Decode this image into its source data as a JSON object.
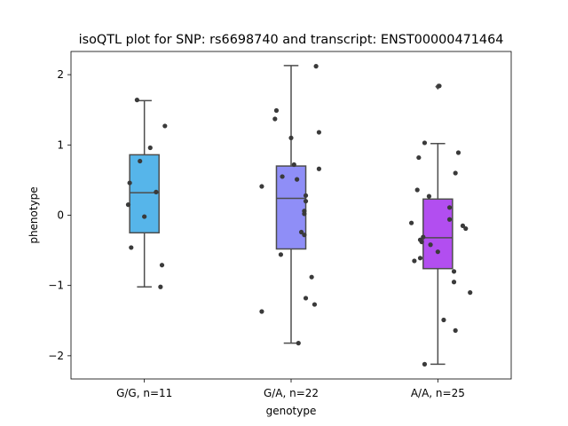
{
  "chart_data": {
    "type": "box",
    "title": "isoQTL plot for SNP: rs6698740 and transcript: ENST00000471464",
    "xlabel": "genotype",
    "ylabel": "phenotype",
    "ylim": [
      -2.33,
      2.33
    ],
    "yticks": [
      -2,
      -1,
      0,
      1,
      2
    ],
    "ytick_labels": [
      "−2",
      "−1",
      "0",
      "1",
      "2"
    ],
    "grid": false,
    "legend": "none",
    "categories": [
      "G/G, n=11",
      "G/A, n=22",
      "A/A, n=25"
    ],
    "colors": [
      "#56b5ea",
      "#8f8ef7",
      "#b24ef0"
    ],
    "point_color": "#3a3a3a",
    "boxes": [
      {
        "q1": -0.25,
        "median": 0.32,
        "q3": 0.86,
        "whisker_low": -1.02,
        "whisker_high": 1.63,
        "fliers": []
      },
      {
        "q1": -0.48,
        "median": 0.24,
        "q3": 0.7,
        "whisker_low": -1.82,
        "whisker_high": 2.13,
        "fliers": []
      },
      {
        "q1": -0.76,
        "median": -0.32,
        "q3": 0.23,
        "whisker_low": -2.12,
        "whisker_high": 1.02,
        "fliers": [
          1.83
        ]
      }
    ],
    "points": [
      [
        {
          "dx": -0.05,
          "y": 1.64
        },
        {
          "dx": 0.14,
          "y": 1.27
        },
        {
          "dx": 0.04,
          "y": 0.96
        },
        {
          "dx": -0.03,
          "y": 0.77
        },
        {
          "dx": -0.1,
          "y": 0.46
        },
        {
          "dx": 0.08,
          "y": 0.33
        },
        {
          "dx": -0.11,
          "y": 0.15
        },
        {
          "dx": 0.0,
          "y": -0.02
        },
        {
          "dx": -0.09,
          "y": -0.46
        },
        {
          "dx": 0.12,
          "y": -0.71
        },
        {
          "dx": 0.11,
          "y": -1.02
        }
      ],
      [
        {
          "dx": 0.17,
          "y": 2.12
        },
        {
          "dx": -0.1,
          "y": 1.49
        },
        {
          "dx": -0.11,
          "y": 1.37
        },
        {
          "dx": 0.19,
          "y": 1.18
        },
        {
          "dx": 0.0,
          "y": 1.1
        },
        {
          "dx": 0.02,
          "y": 0.72
        },
        {
          "dx": 0.19,
          "y": 0.66
        },
        {
          "dx": -0.06,
          "y": 0.55
        },
        {
          "dx": 0.04,
          "y": 0.51
        },
        {
          "dx": -0.2,
          "y": 0.41
        },
        {
          "dx": 0.1,
          "y": 0.28
        },
        {
          "dx": 0.1,
          "y": 0.2
        },
        {
          "dx": 0.09,
          "y": 0.06
        },
        {
          "dx": 0.09,
          "y": 0.02
        },
        {
          "dx": 0.07,
          "y": -0.24
        },
        {
          "dx": 0.09,
          "y": -0.28
        },
        {
          "dx": -0.07,
          "y": -0.56
        },
        {
          "dx": 0.14,
          "y": -0.88
        },
        {
          "dx": 0.1,
          "y": -1.18
        },
        {
          "dx": 0.16,
          "y": -1.27
        },
        {
          "dx": -0.2,
          "y": -1.37
        },
        {
          "dx": 0.05,
          "y": -1.82
        }
      ],
      [
        {
          "dx": 0.01,
          "y": 1.84
        },
        {
          "dx": -0.09,
          "y": 1.03
        },
        {
          "dx": 0.14,
          "y": 0.89
        },
        {
          "dx": -0.13,
          "y": 0.82
        },
        {
          "dx": 0.12,
          "y": 0.6
        },
        {
          "dx": -0.14,
          "y": 0.36
        },
        {
          "dx": -0.06,
          "y": 0.27
        },
        {
          "dx": 0.08,
          "y": 0.11
        },
        {
          "dx": 0.08,
          "y": -0.06
        },
        {
          "dx": -0.18,
          "y": -0.11
        },
        {
          "dx": 0.17,
          "y": -0.15
        },
        {
          "dx": 0.19,
          "y": -0.19
        },
        {
          "dx": -0.1,
          "y": -0.31
        },
        {
          "dx": -0.12,
          "y": -0.35
        },
        {
          "dx": -0.11,
          "y": -0.38
        },
        {
          "dx": -0.05,
          "y": -0.42
        },
        {
          "dx": 0.0,
          "y": -0.52
        },
        {
          "dx": -0.12,
          "y": -0.61
        },
        {
          "dx": -0.16,
          "y": -0.65
        },
        {
          "dx": 0.11,
          "y": -0.8
        },
        {
          "dx": 0.11,
          "y": -0.95
        },
        {
          "dx": 0.22,
          "y": -1.1
        },
        {
          "dx": 0.04,
          "y": -1.49
        },
        {
          "dx": 0.12,
          "y": -1.64
        },
        {
          "dx": -0.09,
          "y": -2.12
        }
      ]
    ]
  }
}
